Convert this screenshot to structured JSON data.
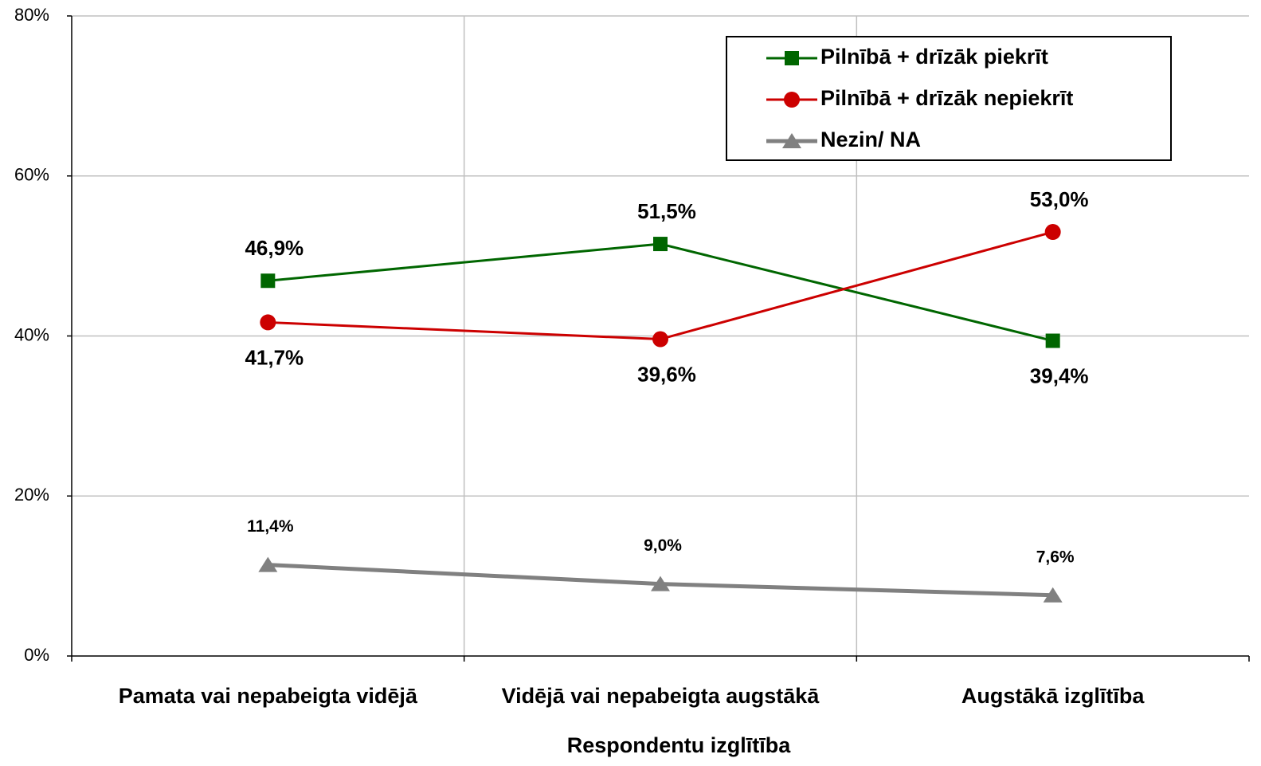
{
  "chart_data": {
    "type": "line",
    "x_label": "Respondentu izglītība",
    "categories": [
      "Pamata vai  nepabeigta vidējā",
      "Vidējā vai  nepabeigta augstākā",
      "Augstākā izglītība"
    ],
    "series": [
      {
        "name": "Pilnībā + drīzāk piekrīt",
        "color": "#006600",
        "marker": "square",
        "values": [
          46.9,
          51.5,
          39.4
        ],
        "value_labels": [
          "46,9%",
          "51,5%",
          "39,4%"
        ]
      },
      {
        "name": "Pilnībā + drīzāk nepiekrīt",
        "color": "#cc0000",
        "marker": "circle",
        "values": [
          41.7,
          39.6,
          53.0
        ],
        "value_labels": [
          "41,7%",
          "39,6%",
          "53,0%"
        ]
      },
      {
        "name": "Nezin/ NA",
        "color": "#808080",
        "marker": "triangle",
        "values": [
          11.4,
          9.0,
          7.6
        ],
        "value_labels": [
          "11,4%",
          "9,0%",
          "7,6%"
        ]
      }
    ],
    "ylim": [
      0,
      80
    ],
    "yticks": [
      {
        "value": 0,
        "label": "0%"
      },
      {
        "value": 20,
        "label": "20%"
      },
      {
        "value": 40,
        "label": "40%"
      },
      {
        "value": 60,
        "label": "60%"
      },
      {
        "value": 80,
        "label": "80%"
      }
    ],
    "grid": true,
    "legend": "upper right"
  }
}
